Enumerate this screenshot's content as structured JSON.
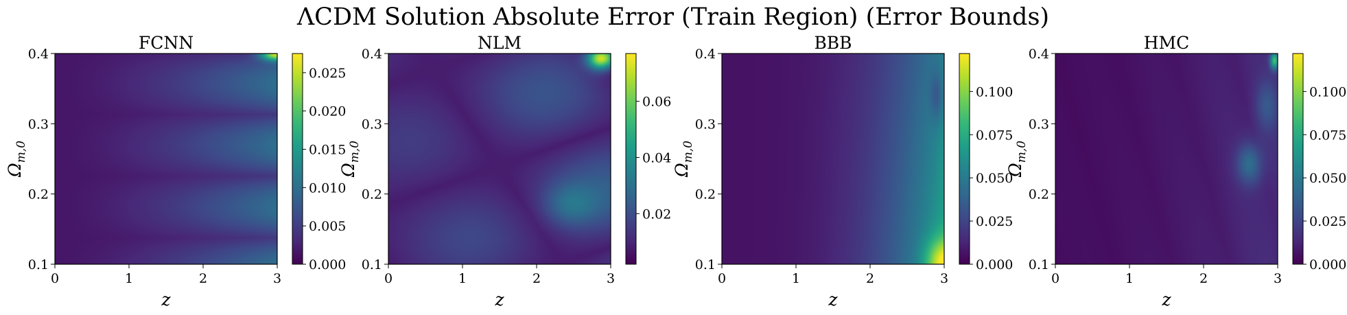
{
  "figure": {
    "title": "ΛCDM Solution Absolute Error (Train Region) (Error Bounds)"
  },
  "chart_data": [
    {
      "type": "heatmap",
      "title": "FCNN",
      "xlabel": "z",
      "ylabel": "Ω_{m,0}",
      "xlim": [
        0,
        3
      ],
      "ylim": [
        0.1,
        0.4
      ],
      "x_ticks": [
        0,
        1,
        2,
        3
      ],
      "y_ticks": [
        0.1,
        0.2,
        0.3,
        0.4
      ],
      "colorbar": {
        "min": 0.0,
        "max": 0.0275,
        "ticks": [
          0.0,
          0.005,
          0.01,
          0.015,
          0.02,
          0.025
        ],
        "tick_labels": [
          "0.000",
          "0.005",
          "0.010",
          "0.015",
          "0.020",
          "0.025"
        ]
      },
      "colormap": "viridis"
    },
    {
      "type": "heatmap",
      "title": "NLM",
      "xlabel": "z",
      "ylabel": "Ω_{m,0}",
      "xlim": [
        0,
        3
      ],
      "ylim": [
        0.1,
        0.4
      ],
      "x_ticks": [
        0,
        1,
        2,
        3
      ],
      "y_ticks": [
        0.1,
        0.2,
        0.3,
        0.4
      ],
      "colorbar": {
        "min": 0.002,
        "max": 0.077,
        "ticks": [
          0.02,
          0.04,
          0.06
        ],
        "tick_labels": [
          "0.02",
          "0.04",
          "0.06"
        ]
      },
      "colormap": "viridis"
    },
    {
      "type": "heatmap",
      "title": "BBB",
      "xlabel": "z",
      "ylabel": "Ω_{m,0}",
      "xlim": [
        0,
        3
      ],
      "ylim": [
        0.1,
        0.4
      ],
      "x_ticks": [
        0,
        1,
        2,
        3
      ],
      "y_ticks": [
        0.1,
        0.2,
        0.3,
        0.4
      ],
      "colorbar": {
        "min": 0.0,
        "max": 0.122,
        "ticks": [
          0.0,
          0.025,
          0.05,
          0.075,
          0.1
        ],
        "tick_labels": [
          "0.000",
          "0.025",
          "0.050",
          "0.075",
          "0.100"
        ]
      },
      "colormap": "viridis"
    },
    {
      "type": "heatmap",
      "title": "HMC",
      "xlabel": "z",
      "ylabel": "Ω_{m,0}",
      "xlim": [
        0,
        3
      ],
      "ylim": [
        0.1,
        0.4
      ],
      "x_ticks": [
        0,
        1,
        2,
        3
      ],
      "y_ticks": [
        0.1,
        0.2,
        0.3,
        0.4
      ],
      "colorbar": {
        "min": 0.0,
        "max": 0.122,
        "ticks": [
          0.0,
          0.025,
          0.05,
          0.075,
          0.1
        ],
        "tick_labels": [
          "0.000",
          "0.025",
          "0.050",
          "0.075",
          "0.100"
        ]
      },
      "colormap": "viridis"
    }
  ]
}
